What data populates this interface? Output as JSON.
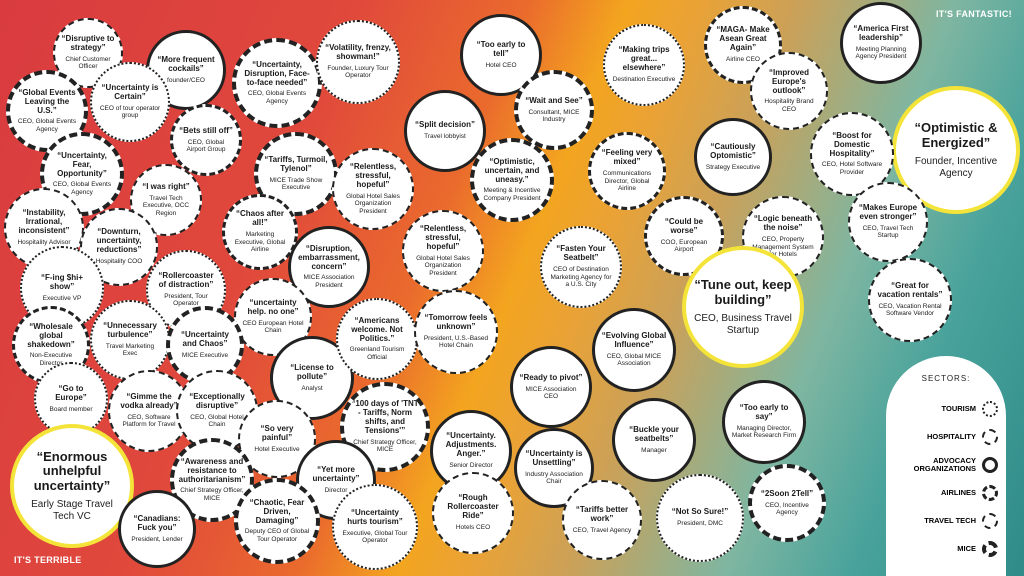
{
  "corners": {
    "top_right": "IT'S FANTASTIC!",
    "bottom_left": "IT'S TERRIBLE"
  },
  "legend": {
    "title": "SECTORS:",
    "items": [
      "TOURISM",
      "HOSPITALITY",
      "ADVOCACY ORGANIZATIONS",
      "AIRLINES",
      "TRAVEL TECH",
      "MICE"
    ]
  },
  "bubbles": [
    {
      "q": "“Disruptive to strategy”",
      "a": "Chief Customer Officer"
    },
    {
      "q": "“More frequent cockails”",
      "a": "founder/CEO"
    },
    {
      "q": "“Uncertainty, Disruption, Face-to-face needed”",
      "a": "CEO, Global Events Agency"
    },
    {
      "q": "“Volatility, frenzy, showman!”",
      "a": "Founder, Luxury Tour Operator"
    },
    {
      "q": "“Too early to tell”",
      "a": "Hotel CEO"
    },
    {
      "q": "“Making trips great... elsewhere”",
      "a": "Destination Executive"
    },
    {
      "q": "“MAGA- Make Asean Great Again”",
      "a": "Airline CEO"
    },
    {
      "q": "“America First leadership”",
      "a": "Meeting Planning Agency President"
    },
    {
      "q": "“Global Events Leaving the U.S.”",
      "a": "CEO, Global Events Agency"
    },
    {
      "q": "“Uncertainty is Certain”",
      "a": "CEO of tour operator group"
    },
    {
      "q": "“Bets still off”",
      "a": "CEO, Global Airport Group"
    },
    {
      "q": "“Split decision”",
      "a": "Travel lobbyist"
    },
    {
      "q": "“Wait and See”",
      "a": "Consultant, MICE Industry"
    },
    {
      "q": "“Improved Europe's outlook”",
      "a": "Hospitality Brand CEO"
    },
    {
      "q": "“Optimistic & Energized”",
      "a": "Founder, Incentive Agency"
    },
    {
      "q": "“Uncertainty, Fear, Opportunity”",
      "a": "CEO, Global Events Agency"
    },
    {
      "q": "“Tariffs, Turmoil, Tylenol”",
      "a": "MICE Trade Show Executive"
    },
    {
      "q": "“Relentless, stressful, hopeful”",
      "a": "Global Hotel Sales Organization President"
    },
    {
      "q": "“Optimistic, uncertain, and uneasy.”",
      "a": "Meeting & Incentive Company President"
    },
    {
      "q": "“Feeling very mixed”",
      "a": "Communications Director, Global Airline"
    },
    {
      "q": "“Cautiously Optomistic”",
      "a": "Strategy Executive"
    },
    {
      "q": "“Boost for Domestic Hospitality”",
      "a": "CEO, Hotel Software Provider"
    },
    {
      "q": "“I was right”",
      "a": "Travel Tech Executive, OCC Region"
    },
    {
      "q": "“Instability, Irrational, inconsistent”",
      "a": "Hospitality Advisor"
    },
    {
      "q": "“Downturn, uncertainty, reductions”",
      "a": "Hospitality COO"
    },
    {
      "q": "“Chaos after all!”",
      "a": "Marketing Executive, Global Airline"
    },
    {
      "q": "“Disruption, embarrassment, concern”",
      "a": "MICE Association President"
    },
    {
      "q": "“Relentless, stressful, hopeful”",
      "a": "Global Hotel Sales Organization President"
    },
    {
      "q": "“Fasten Your Seatbelt”",
      "a": "CEO of Destination Marketing Agency for a U.S. City"
    },
    {
      "q": "“Could be worse”",
      "a": "COO, European Airport"
    },
    {
      "q": "“Logic beneath the noise”",
      "a": "CEO, Property Management System for Hotels"
    },
    {
      "q": "“Makes Europe even stronger”",
      "a": "CEO, Travel Tech Startup"
    },
    {
      "q": "“F-ing $hi+ show”",
      "a": "Executive VP"
    },
    {
      "q": "“Rollercoaster of distraction”",
      "a": "President, Tour Operator"
    },
    {
      "q": "“uncertainty help. no one”",
      "a": "CEO European Hotel Chain"
    },
    {
      "q": "“Tune out, keep building”",
      "a": "CEO, Business Travel Startup"
    },
    {
      "q": "“Great for vacation rentals”",
      "a": "CEO, Vacation Rental Software Vendor"
    },
    {
      "q": "“Wholesale global shakedown”",
      "a": "Non-Executive Director"
    },
    {
      "q": "“Unnecessary turbulence”",
      "a": "Travel Marketing Exec"
    },
    {
      "q": "“Uncertainty and Chaos”",
      "a": "MICE Executive"
    },
    {
      "q": "“License to pollute”",
      "a": "Analyst"
    },
    {
      "q": "“Americans welcome. Not Politics.”",
      "a": "Greenland Tourism Official"
    },
    {
      "q": "“Tomorrow feels unknown”",
      "a": "President, U.S.-Based Hotel Chain"
    },
    {
      "q": "“Evolving Global Influence”",
      "a": "CEO, Global MICE Association"
    },
    {
      "q": "“Ready to pivot”",
      "a": "MICE Association CEO"
    },
    {
      "q": "“Go to Europe”",
      "a": "Board member"
    },
    {
      "q": "“Gimme the vodka already”",
      "a": "CEO, Software Platform for Travel"
    },
    {
      "q": "“Exceptionally disruptive”",
      "a": "CEO, Global Hotel Chain"
    },
    {
      "q": "“So very painful”",
      "a": "Hotel Executive"
    },
    {
      "q": "“100 days of 'TNT - Tariffs, Norm shifts, and Tensions'”",
      "a": "Chief Strategy Officer, MICE"
    },
    {
      "q": "“Buckle your seatbelts”",
      "a": "Manager"
    },
    {
      "q": "“Too early to say”",
      "a": "Managing Director, Market Research Firm"
    },
    {
      "q": "“Enormous unhelpful uncertainty”",
      "a": "Early Stage Travel Tech VC"
    },
    {
      "q": "“Awareness and resistance to authoritarianism”",
      "a": "Chief Strategy Officer, MICE"
    },
    {
      "q": "“Yet more uncertainty”",
      "a": "Director"
    },
    {
      "q": "“Uncertainty. Adjustments. Anger.”",
      "a": "Senior Director"
    },
    {
      "q": "“Uncertainty is Unsettling”",
      "a": "Industry Association Chair"
    },
    {
      "q": "“Canadians: Fuck you”",
      "a": "President, Lender"
    },
    {
      "q": "“Chaotic, Fear Driven, Damaging”",
      "a": "Deputy CEO of Global Tour Operator"
    },
    {
      "q": "“Uncertainty hurts tourism”",
      "a": "Executive, Global Tour Operator"
    },
    {
      "q": "“Rough Rollercoaster Ride”",
      "a": "Hotels CEO"
    },
    {
      "q": "“Tariffs better work”",
      "a": "CEO, Travel Agency"
    },
    {
      "q": "“Not So Sure!”",
      "a": "President, DMC"
    },
    {
      "q": "“2Soon 2Tell”",
      "a": "CEO, Incentive Agency"
    }
  ]
}
